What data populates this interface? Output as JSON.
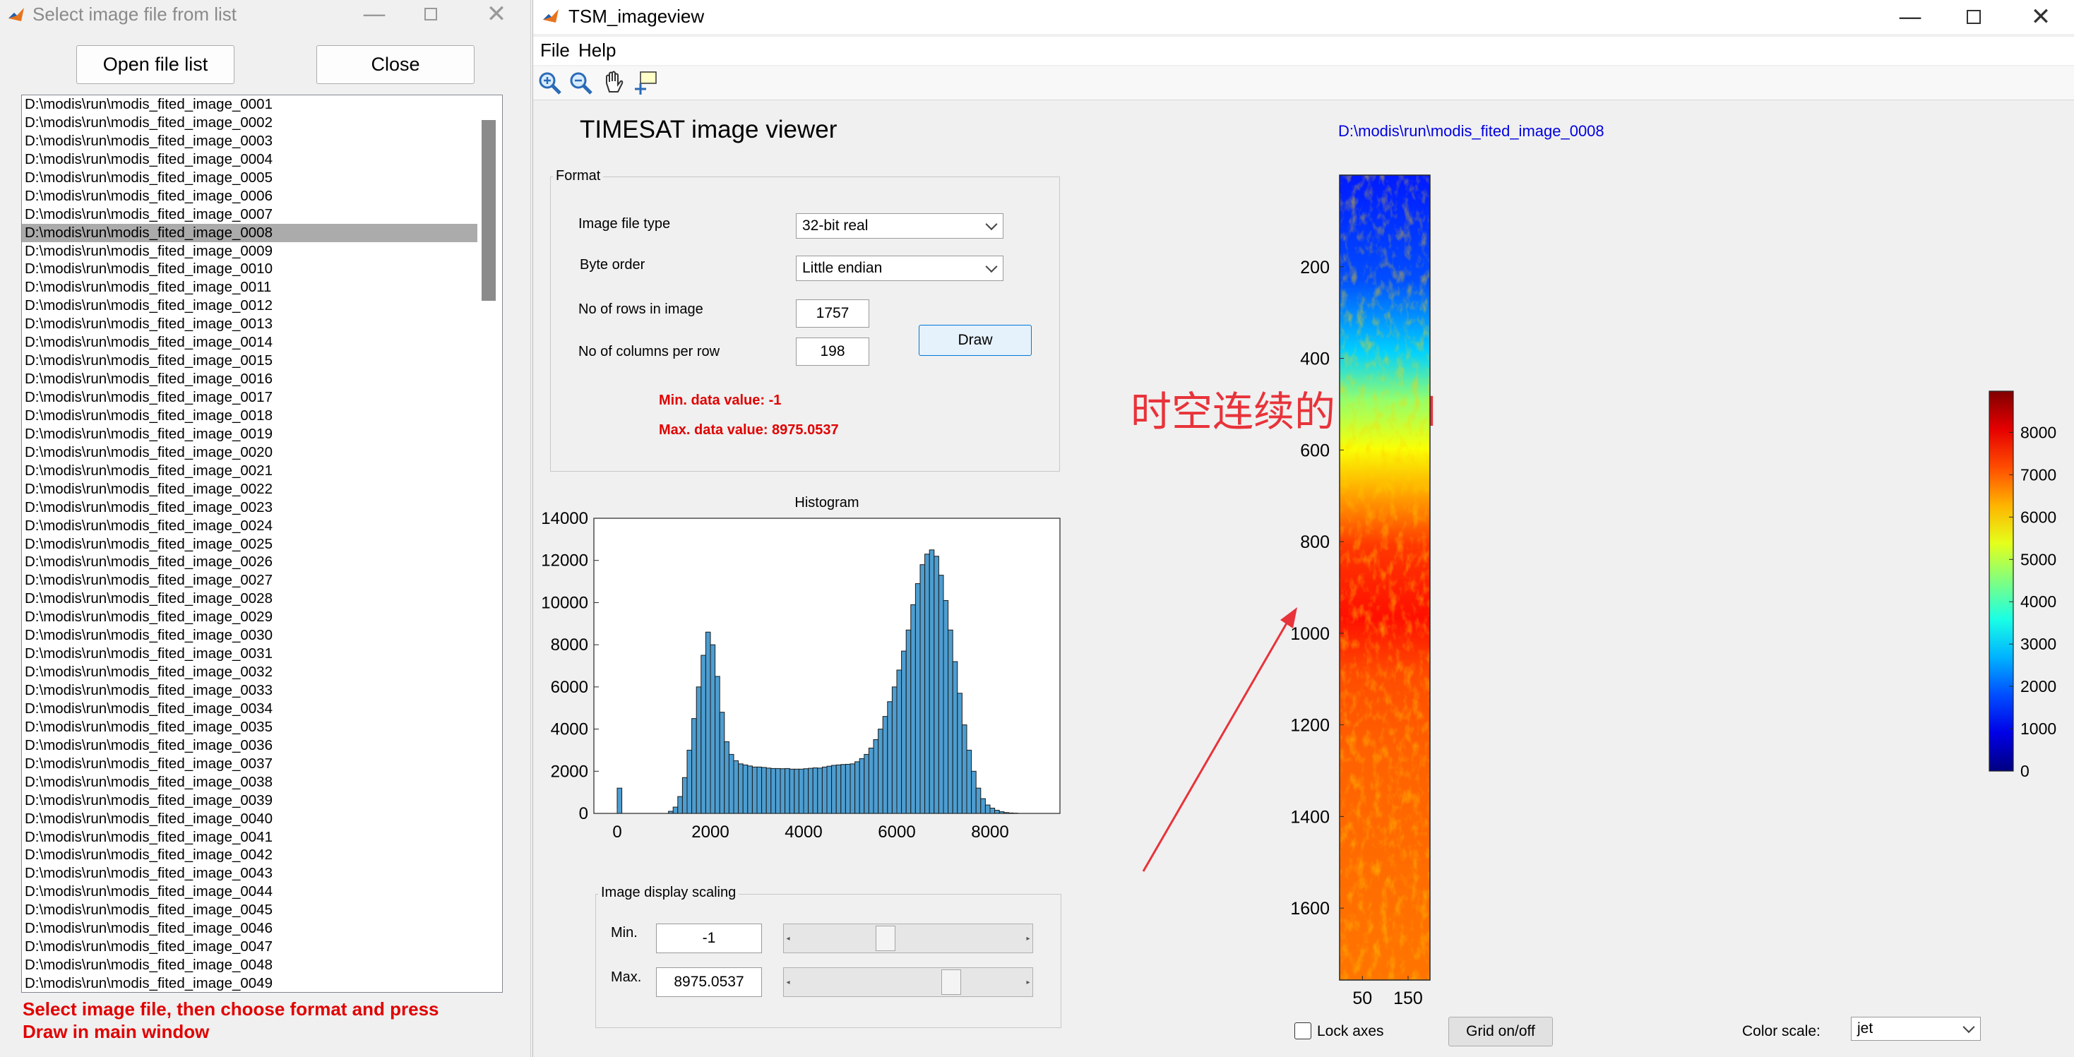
{
  "left_window": {
    "title": "Select image file from list",
    "open_button": "Open file list",
    "close_button": "Close",
    "selected_index": 7,
    "files": [
      "D:\\modis\\run\\modis_fited_image_0001",
      "D:\\modis\\run\\modis_fited_image_0002",
      "D:\\modis\\run\\modis_fited_image_0003",
      "D:\\modis\\run\\modis_fited_image_0004",
      "D:\\modis\\run\\modis_fited_image_0005",
      "D:\\modis\\run\\modis_fited_image_0006",
      "D:\\modis\\run\\modis_fited_image_0007",
      "D:\\modis\\run\\modis_fited_image_0008",
      "D:\\modis\\run\\modis_fited_image_0009",
      "D:\\modis\\run\\modis_fited_image_0010",
      "D:\\modis\\run\\modis_fited_image_0011",
      "D:\\modis\\run\\modis_fited_image_0012",
      "D:\\modis\\run\\modis_fited_image_0013",
      "D:\\modis\\run\\modis_fited_image_0014",
      "D:\\modis\\run\\modis_fited_image_0015",
      "D:\\modis\\run\\modis_fited_image_0016",
      "D:\\modis\\run\\modis_fited_image_0017",
      "D:\\modis\\run\\modis_fited_image_0018",
      "D:\\modis\\run\\modis_fited_image_0019",
      "D:\\modis\\run\\modis_fited_image_0020",
      "D:\\modis\\run\\modis_fited_image_0021",
      "D:\\modis\\run\\modis_fited_image_0022",
      "D:\\modis\\run\\modis_fited_image_0023",
      "D:\\modis\\run\\modis_fited_image_0024",
      "D:\\modis\\run\\modis_fited_image_0025",
      "D:\\modis\\run\\modis_fited_image_0026",
      "D:\\modis\\run\\modis_fited_image_0027",
      "D:\\modis\\run\\modis_fited_image_0028",
      "D:\\modis\\run\\modis_fited_image_0029",
      "D:\\modis\\run\\modis_fited_image_0030",
      "D:\\modis\\run\\modis_fited_image_0031",
      "D:\\modis\\run\\modis_fited_image_0032",
      "D:\\modis\\run\\modis_fited_image_0033",
      "D:\\modis\\run\\modis_fited_image_0034",
      "D:\\modis\\run\\modis_fited_image_0035",
      "D:\\modis\\run\\modis_fited_image_0036",
      "D:\\modis\\run\\modis_fited_image_0037",
      "D:\\modis\\run\\modis_fited_image_0038",
      "D:\\modis\\run\\modis_fited_image_0039",
      "D:\\modis\\run\\modis_fited_image_0040",
      "D:\\modis\\run\\modis_fited_image_0041",
      "D:\\modis\\run\\modis_fited_image_0042",
      "D:\\modis\\run\\modis_fited_image_0043",
      "D:\\modis\\run\\modis_fited_image_0044",
      "D:\\modis\\run\\modis_fited_image_0045",
      "D:\\modis\\run\\modis_fited_image_0046",
      "D:\\modis\\run\\modis_fited_image_0047",
      "D:\\modis\\run\\modis_fited_image_0048",
      "D:\\modis\\run\\modis_fited_image_0049"
    ],
    "instruction_line1": "Select image file, then choose format and press",
    "instruction_line2": "Draw in main window"
  },
  "main_window": {
    "title": "TSM_imageview",
    "menu": {
      "file": "File",
      "help": "Help"
    },
    "toolbar": [
      "zoom-in-icon",
      "zoom-out-icon",
      "pan-hand-icon",
      "data-cursor-icon"
    ],
    "app_title": "TIMESAT image viewer",
    "file_path": "D:\\modis\\run\\modis_fited_image_0008",
    "format": {
      "group_title": "Format",
      "image_file_type_label": "Image file type",
      "image_file_type_value": "32-bit real",
      "byte_order_label": "Byte order",
      "byte_order_value": "Little endian",
      "rows_label": "No of rows in image",
      "rows_value": "1757",
      "cols_label": "No of columns per row",
      "cols_value": "198",
      "draw_button": "Draw",
      "min_text": "Min. data value: -1",
      "max_text": "Max. data value: 8975.0537"
    },
    "scaling": {
      "group_title": "Image display scaling",
      "min_label": "Min.",
      "min_value": "-1",
      "max_label": "Max.",
      "max_value": "8975.0537",
      "min_slider_fraction": 0.39,
      "max_slider_fraction": 0.7
    },
    "annotation": "时空连续的NDVI",
    "lock_axes_label": "Lock axes",
    "lock_axes_checked": false,
    "grid_button": "Grid on/off",
    "color_scale_label": "Color scale:",
    "color_scale_value": "jet"
  },
  "chart_data": [
    {
      "type": "bar",
      "title": "Histogram",
      "xlim": [
        -500,
        9500
      ],
      "ylim": [
        0,
        14000
      ],
      "x_ticks": [
        0,
        2000,
        4000,
        6000,
        8000
      ],
      "y_ticks": [
        0,
        2000,
        4000,
        6000,
        8000,
        10000,
        12000,
        14000
      ],
      "bin_width": 100,
      "bin_start": 0,
      "values": [
        1200,
        0,
        0,
        0,
        0,
        0,
        0,
        0,
        0,
        0,
        0,
        100,
        300,
        800,
        1700,
        3000,
        4500,
        6000,
        7500,
        8600,
        8000,
        6500,
        4800,
        3400,
        2800,
        2500,
        2350,
        2300,
        2250,
        2200,
        2200,
        2180,
        2150,
        2130,
        2130,
        2120,
        2130,
        2100,
        2100,
        2100,
        2120,
        2140,
        2160,
        2150,
        2200,
        2240,
        2280,
        2300,
        2320,
        2330,
        2350,
        2450,
        2600,
        2800,
        3100,
        3500,
        4000,
        4600,
        5300,
        6000,
        6800,
        7700,
        8700,
        9900,
        10900,
        11800,
        12300,
        12500,
        12200,
        11300,
        10100,
        8700,
        7200,
        5700,
        4200,
        3000,
        2000,
        1200,
        700,
        400,
        250,
        150,
        80,
        40,
        20,
        10
      ]
    },
    {
      "type": "heatmap",
      "colormap": "jet",
      "xlim": [
        0,
        198
      ],
      "ylim": [
        0,
        1757
      ],
      "x_ticks": [
        50,
        150
      ],
      "y_ticks": [
        200,
        400,
        600,
        800,
        1000,
        1200,
        1400,
        1600
      ],
      "colorbar_ticks": [
        0,
        1000,
        2000,
        3000,
        4000,
        5000,
        6000,
        7000,
        8000
      ],
      "colorbar_range": [
        0,
        8975.0537
      ]
    }
  ]
}
